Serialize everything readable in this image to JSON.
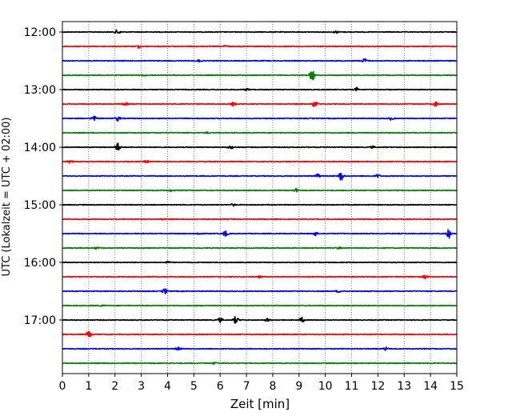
{
  "chart_data": {
    "type": "line",
    "title": "",
    "xlabel": "Zeit  [min]",
    "ylabel": "UTC (Lokalzeit = UTC + 02:00)",
    "xlim": [
      0,
      15
    ],
    "x_ticks": [
      "0",
      "1",
      "2",
      "3",
      "4",
      "5",
      "6",
      "7",
      "8",
      "9",
      "10",
      "11",
      "12",
      "13",
      "14",
      "15"
    ],
    "x_grid": "dotted-vertical",
    "y_ticks": [
      "12:00",
      "13:00",
      "14:00",
      "15:00",
      "16:00",
      "17:00"
    ],
    "trace_interval_min": 15,
    "color_cycle": [
      "#000000",
      "#ff0000",
      "#0000ff",
      "#008000"
    ],
    "series": [
      {
        "start": "12:00",
        "color": "#000000",
        "events": [
          [
            2.1,
            0.5
          ],
          [
            10.4,
            0.25
          ]
        ]
      },
      {
        "start": "12:15",
        "color": "#ff0000",
        "events": [
          [
            2.9,
            0.3
          ],
          [
            6.2,
            0.2
          ]
        ]
      },
      {
        "start": "12:30",
        "color": "#0000ff",
        "events": [
          [
            11.5,
            0.45
          ],
          [
            5.2,
            0.2
          ]
        ]
      },
      {
        "start": "12:45",
        "color": "#008000",
        "events": [
          [
            9.5,
            1.3
          ],
          [
            3.1,
            0.15
          ]
        ]
      },
      {
        "start": "13:00",
        "color": "#000000",
        "events": [
          [
            11.2,
            0.4
          ],
          [
            7.0,
            0.2
          ]
        ]
      },
      {
        "start": "13:15",
        "color": "#ff0000",
        "events": [
          [
            9.6,
            0.75
          ],
          [
            14.2,
            0.5
          ],
          [
            6.5,
            0.35
          ],
          [
            2.4,
            0.3
          ]
        ]
      },
      {
        "start": "13:30",
        "color": "#0000ff",
        "events": [
          [
            1.2,
            0.45
          ],
          [
            2.1,
            0.5
          ],
          [
            12.5,
            0.3
          ]
        ]
      },
      {
        "start": "13:45",
        "color": "#008000",
        "events": [
          [
            5.5,
            0.15
          ]
        ]
      },
      {
        "start": "14:00",
        "color": "#000000",
        "events": [
          [
            2.1,
            0.9
          ],
          [
            6.4,
            0.35
          ],
          [
            11.8,
            0.2
          ]
        ]
      },
      {
        "start": "14:15",
        "color": "#ff0000",
        "events": [
          [
            0.3,
            0.3
          ],
          [
            3.2,
            0.25
          ]
        ]
      },
      {
        "start": "14:30",
        "color": "#0000ff",
        "events": [
          [
            10.6,
            1.0
          ],
          [
            9.7,
            0.45
          ],
          [
            12.0,
            0.35
          ]
        ]
      },
      {
        "start": "14:45",
        "color": "#008000",
        "events": [
          [
            8.9,
            0.4
          ],
          [
            4.1,
            0.2
          ]
        ]
      },
      {
        "start": "15:00",
        "color": "#000000",
        "events": [
          [
            6.5,
            0.2
          ]
        ]
      },
      {
        "start": "15:15",
        "color": "#ff0000",
        "events": [
          [
            3.8,
            0.15
          ]
        ]
      },
      {
        "start": "15:30",
        "color": "#0000ff",
        "events": [
          [
            6.2,
            0.6
          ],
          [
            14.7,
            0.9
          ],
          [
            9.6,
            0.4
          ],
          [
            5.2,
            0.3
          ]
        ]
      },
      {
        "start": "15:45",
        "color": "#008000",
        "events": [
          [
            1.3,
            0.2
          ],
          [
            10.5,
            0.2
          ]
        ]
      },
      {
        "start": "16:00",
        "color": "#000000",
        "events": [
          [
            4.0,
            0.2
          ]
        ]
      },
      {
        "start": "16:15",
        "color": "#ff0000",
        "events": [
          [
            13.8,
            0.4
          ],
          [
            7.5,
            0.15
          ]
        ]
      },
      {
        "start": "16:30",
        "color": "#0000ff",
        "events": [
          [
            3.9,
            0.55
          ],
          [
            10.5,
            0.2
          ]
        ]
      },
      {
        "start": "16:45",
        "color": "#008000",
        "events": [
          [
            1.5,
            0.15
          ]
        ]
      },
      {
        "start": "17:00",
        "color": "#000000",
        "events": [
          [
            6.6,
            0.75
          ],
          [
            6.0,
            0.45
          ],
          [
            9.1,
            0.5
          ],
          [
            7.8,
            0.3
          ]
        ]
      },
      {
        "start": "17:15",
        "color": "#ff0000",
        "events": [
          [
            1.0,
            0.6
          ]
        ]
      },
      {
        "start": "17:30",
        "color": "#0000ff",
        "events": [
          [
            4.4,
            0.3
          ],
          [
            12.3,
            0.3
          ]
        ]
      },
      {
        "start": "17:45",
        "color": "#008000",
        "events": [
          [
            5.8,
            0.2
          ]
        ]
      }
    ]
  }
}
